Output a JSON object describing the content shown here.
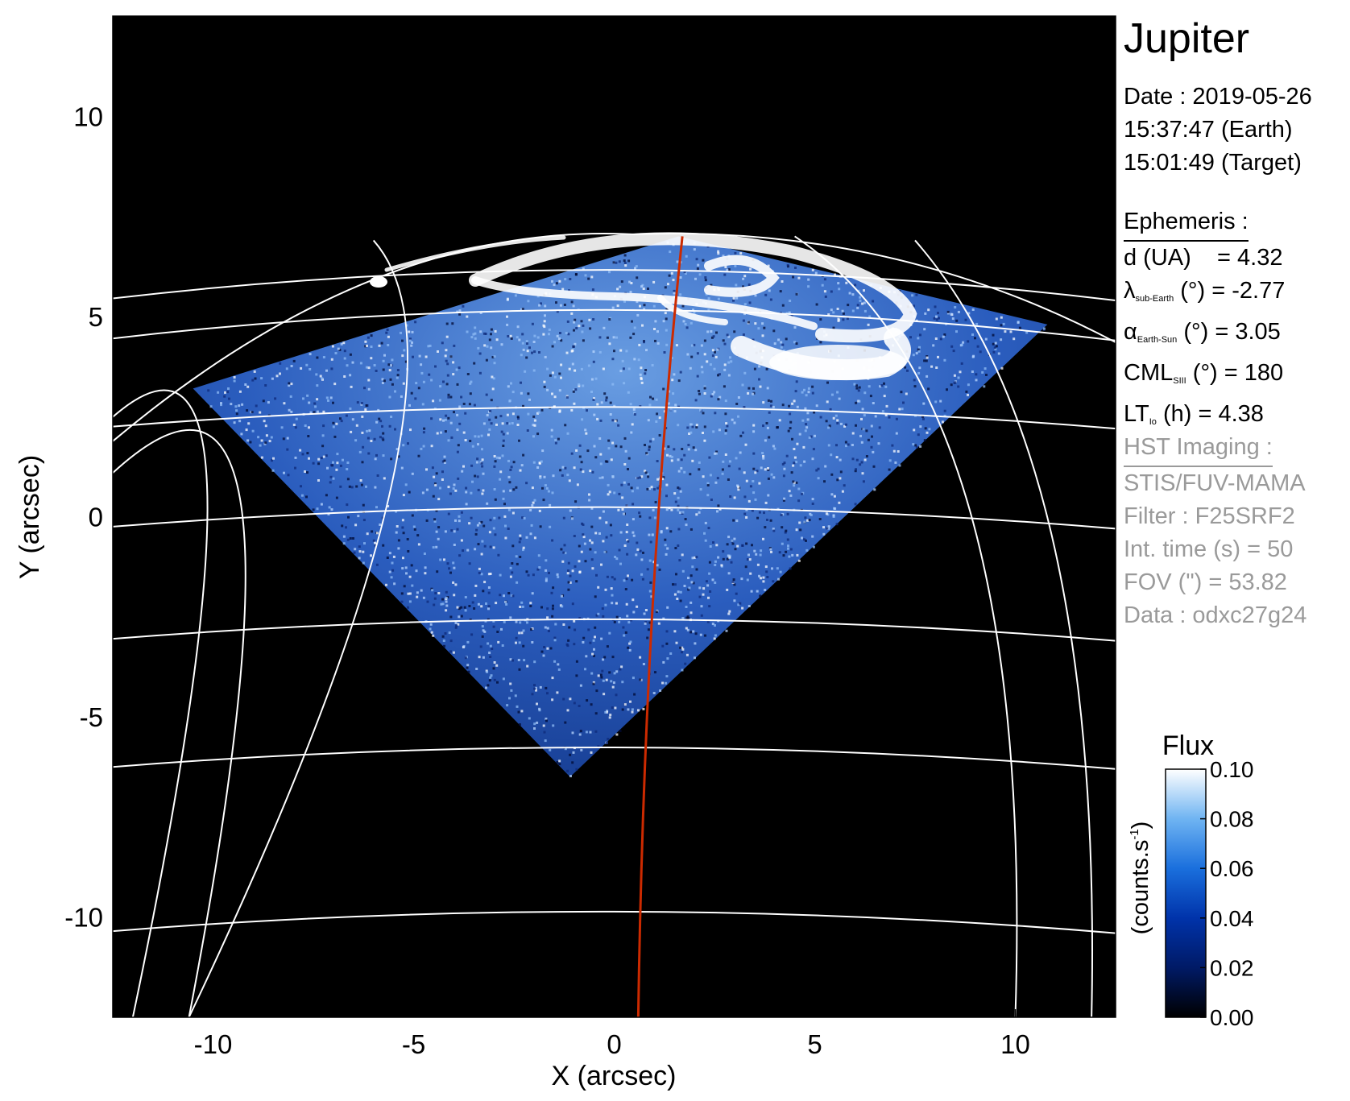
{
  "target": "Jupiter",
  "date_info": {
    "date": "Date : 2019-05-26",
    "earth_time": "15:37:47 (Earth)",
    "target_time": "15:01:49 (Target)"
  },
  "ephemeris": {
    "title": "Ephemeris :",
    "d_label": "d (UA)",
    "d_value": "= 4.32",
    "lambda_symbol": "λ",
    "lambda_sub": "sub-Earth",
    "lambda_rest": " (°) = -2.77",
    "alpha_symbol": "α",
    "alpha_sub": "Earth-Sun",
    "alpha_rest": " (°) = 3.05",
    "cml_label": "CML",
    "cml_sub": "SIII",
    "cml_rest": " (°) = 180",
    "lt_label": "LT",
    "lt_sub": "Io",
    "lt_rest": " (h) = 4.38"
  },
  "hst": {
    "title": "HST Imaging :",
    "instrument": "STIS/FUV-MAMA",
    "filter": "Filter : F25SRF2",
    "int_time": "Int. time (s) = 50",
    "fov": "FOV (\") = 53.82",
    "data": "Data : odxc27g24"
  },
  "colorbar": {
    "title": "Flux",
    "unit_label": "(counts.s",
    "unit_sup": "-1",
    "unit_close": ")",
    "ticks": [
      "0.10",
      "0.08",
      "0.06",
      "0.04",
      "0.02",
      "0.00"
    ],
    "tick_values": [
      0.1,
      0.08,
      0.06,
      0.04,
      0.02,
      0.0
    ],
    "range": [
      0.0,
      0.1
    ],
    "colors": [
      "#000000",
      "#001a66",
      "#0033aa",
      "#1a6fdd",
      "#6fb4f2",
      "#ffffff"
    ]
  },
  "chart_data": {
    "type": "heatmap",
    "title": "",
    "xlabel": "X (arcsec)",
    "ylabel": "Y (arcsec)",
    "xlim": [
      -12.5,
      12.5
    ],
    "ylim": [
      -12.5,
      12.5
    ],
    "xticks": [
      -10,
      -5,
      0,
      5,
      10
    ],
    "yticks": [
      -10,
      -5,
      0,
      5,
      10
    ],
    "xtick_labels": [
      "-10",
      "-5",
      "0",
      "5",
      "10"
    ],
    "ytick_labels": [
      "-10",
      "-5",
      "0",
      "5",
      "10"
    ],
    "image_region": [
      [
        -10.5,
        3.2
      ],
      [
        1.6,
        7.0
      ],
      [
        10.8,
        4.8
      ],
      [
        -1.1,
        -6.5
      ]
    ],
    "planet_grid": {
      "color": "#ffffff",
      "latitude_lines_y": [
        6.0,
        5.0,
        2.8,
        0.3,
        -2.5,
        -5.7,
        -9.8,
        -12.5
      ],
      "central_meridian_color": "#cc2a00",
      "central_meridian": [
        [
          1.7,
          7.0
        ],
        [
          0.6,
          -12.5
        ]
      ]
    },
    "limb_color": "#ffffff"
  }
}
